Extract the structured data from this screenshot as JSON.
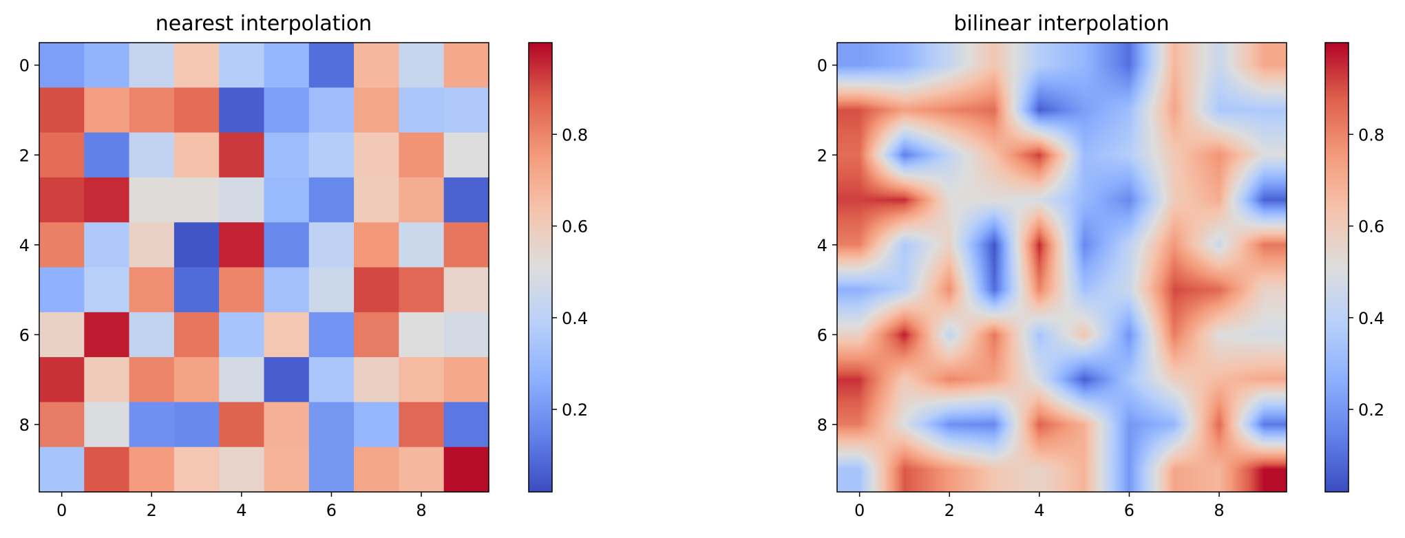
{
  "chart_data": [
    {
      "type": "heatmap",
      "title": "nearest interpolation",
      "interpolation": "nearest",
      "colormap": "coolwarm",
      "x_ticks": [
        "0",
        "2",
        "4",
        "6",
        "8"
      ],
      "y_ticks": [
        "0",
        "2",
        "4",
        "6",
        "8"
      ],
      "xlim": [
        -0.5,
        9.5
      ],
      "ylim": [
        9.5,
        -0.5
      ],
      "colorbar": {
        "ticks": [
          "0.2",
          "0.4",
          "0.6",
          "0.8"
        ],
        "range": [
          0.02,
          1.0
        ]
      },
      "values": [
        [
          0.22,
          0.28,
          0.43,
          0.62,
          0.38,
          0.29,
          0.1,
          0.67,
          0.44,
          0.71
        ],
        [
          0.9,
          0.74,
          0.8,
          0.85,
          0.06,
          0.22,
          0.32,
          0.72,
          0.35,
          0.36
        ],
        [
          0.85,
          0.14,
          0.42,
          0.64,
          0.93,
          0.31,
          0.38,
          0.61,
          0.77,
          0.51
        ],
        [
          0.92,
          0.95,
          0.52,
          0.52,
          0.48,
          0.3,
          0.16,
          0.6,
          0.7,
          0.07
        ],
        [
          0.81,
          0.36,
          0.57,
          0.04,
          0.96,
          0.16,
          0.41,
          0.76,
          0.45,
          0.83
        ],
        [
          0.27,
          0.39,
          0.78,
          0.09,
          0.8,
          0.33,
          0.45,
          0.91,
          0.86,
          0.56
        ],
        [
          0.57,
          0.97,
          0.42,
          0.83,
          0.34,
          0.62,
          0.19,
          0.82,
          0.51,
          0.48
        ],
        [
          0.94,
          0.6,
          0.8,
          0.73,
          0.48,
          0.06,
          0.35,
          0.58,
          0.66,
          0.71
        ],
        [
          0.82,
          0.5,
          0.18,
          0.16,
          0.87,
          0.69,
          0.2,
          0.29,
          0.86,
          0.12
        ],
        [
          0.34,
          0.89,
          0.75,
          0.62,
          0.56,
          0.68,
          0.2,
          0.72,
          0.67,
          0.99
        ]
      ]
    },
    {
      "type": "heatmap",
      "title": "bilinear interpolation",
      "interpolation": "bilinear",
      "colormap": "coolwarm",
      "x_ticks": [
        "0",
        "2",
        "4",
        "6",
        "8"
      ],
      "y_ticks": [
        "0",
        "2",
        "4",
        "6",
        "8"
      ],
      "xlim": [
        -0.5,
        9.5
      ],
      "ylim": [
        9.5,
        -0.5
      ],
      "colorbar": {
        "ticks": [
          "0.2",
          "0.4",
          "0.6",
          "0.8"
        ],
        "range": [
          0.02,
          1.0
        ]
      },
      "values_source": "same matrix as nearest interpolation panel"
    }
  ]
}
